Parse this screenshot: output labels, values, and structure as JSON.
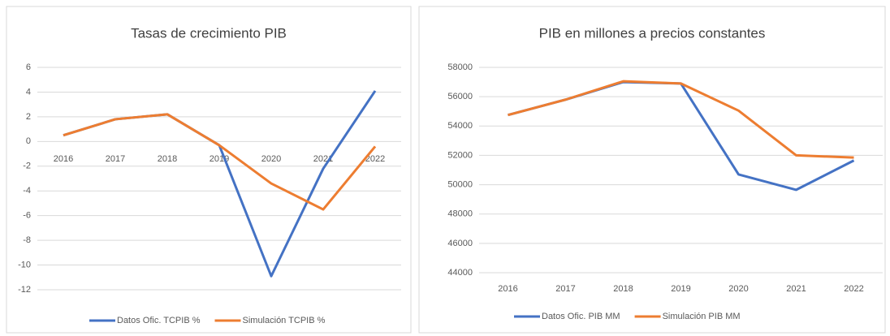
{
  "chart_data": [
    {
      "type": "line",
      "title": "Tasas de crecimiento PIB",
      "categories": [
        "2016",
        "2017",
        "2018",
        "2019",
        "2020",
        "2021",
        "2022"
      ],
      "series": [
        {
          "name": "Datos Ofic. TCPIB  %",
          "color": "#4472c4",
          "values": [
            0.5,
            1.8,
            2.2,
            -0.3,
            -10.9,
            -2.2,
            4.1
          ]
        },
        {
          "name": "Simulación  TCPIB  %",
          "color": "#ed7d31",
          "values": [
            0.5,
            1.8,
            2.2,
            -0.3,
            -3.4,
            -5.5,
            -0.4
          ]
        }
      ],
      "ylim": [
        -12,
        6
      ],
      "yticks": [
        -12,
        -10,
        -8,
        -6,
        -4,
        -2,
        0,
        2,
        4,
        6
      ],
      "grid": true,
      "legend": "bottom"
    },
    {
      "type": "line",
      "title": "PIB en millones a precios constantes",
      "categories": [
        "2016",
        "2017",
        "2018",
        "2019",
        "2020",
        "2021",
        "2022"
      ],
      "series": [
        {
          "name": "Datos Ofic. PIB MM",
          "color": "#4472c4",
          "values": [
            54750,
            55800,
            57000,
            56900,
            50700,
            49650,
            51650
          ]
        },
        {
          "name": "Simulación  PIB MM",
          "color": "#ed7d31",
          "values": [
            54750,
            55800,
            57050,
            56900,
            55050,
            52000,
            51850
          ]
        }
      ],
      "ylim": [
        44000,
        58000
      ],
      "yticks": [
        44000,
        46000,
        48000,
        50000,
        52000,
        54000,
        56000,
        58000
      ],
      "grid": true,
      "legend": "bottom"
    }
  ]
}
